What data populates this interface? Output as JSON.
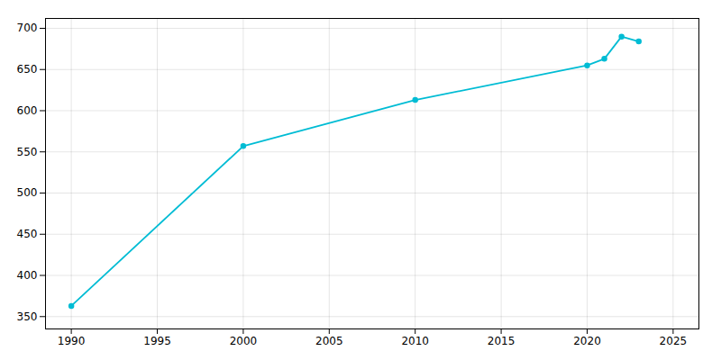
{
  "chart_data": {
    "type": "line",
    "x": [
      1990,
      2000,
      2010,
      2020,
      2021,
      2022,
      2023
    ],
    "values": [
      363,
      557,
      613,
      655,
      663,
      690,
      684
    ],
    "color": "#00BCD4",
    "marker": "circle",
    "xlim": [
      1988.5,
      2026.5
    ],
    "ylim": [
      335,
      712
    ],
    "xticks": [
      1990,
      1995,
      2000,
      2005,
      2010,
      2015,
      2020,
      2025
    ],
    "yticks": [
      350,
      400,
      450,
      500,
      550,
      600,
      650,
      700
    ],
    "grid": true
  }
}
